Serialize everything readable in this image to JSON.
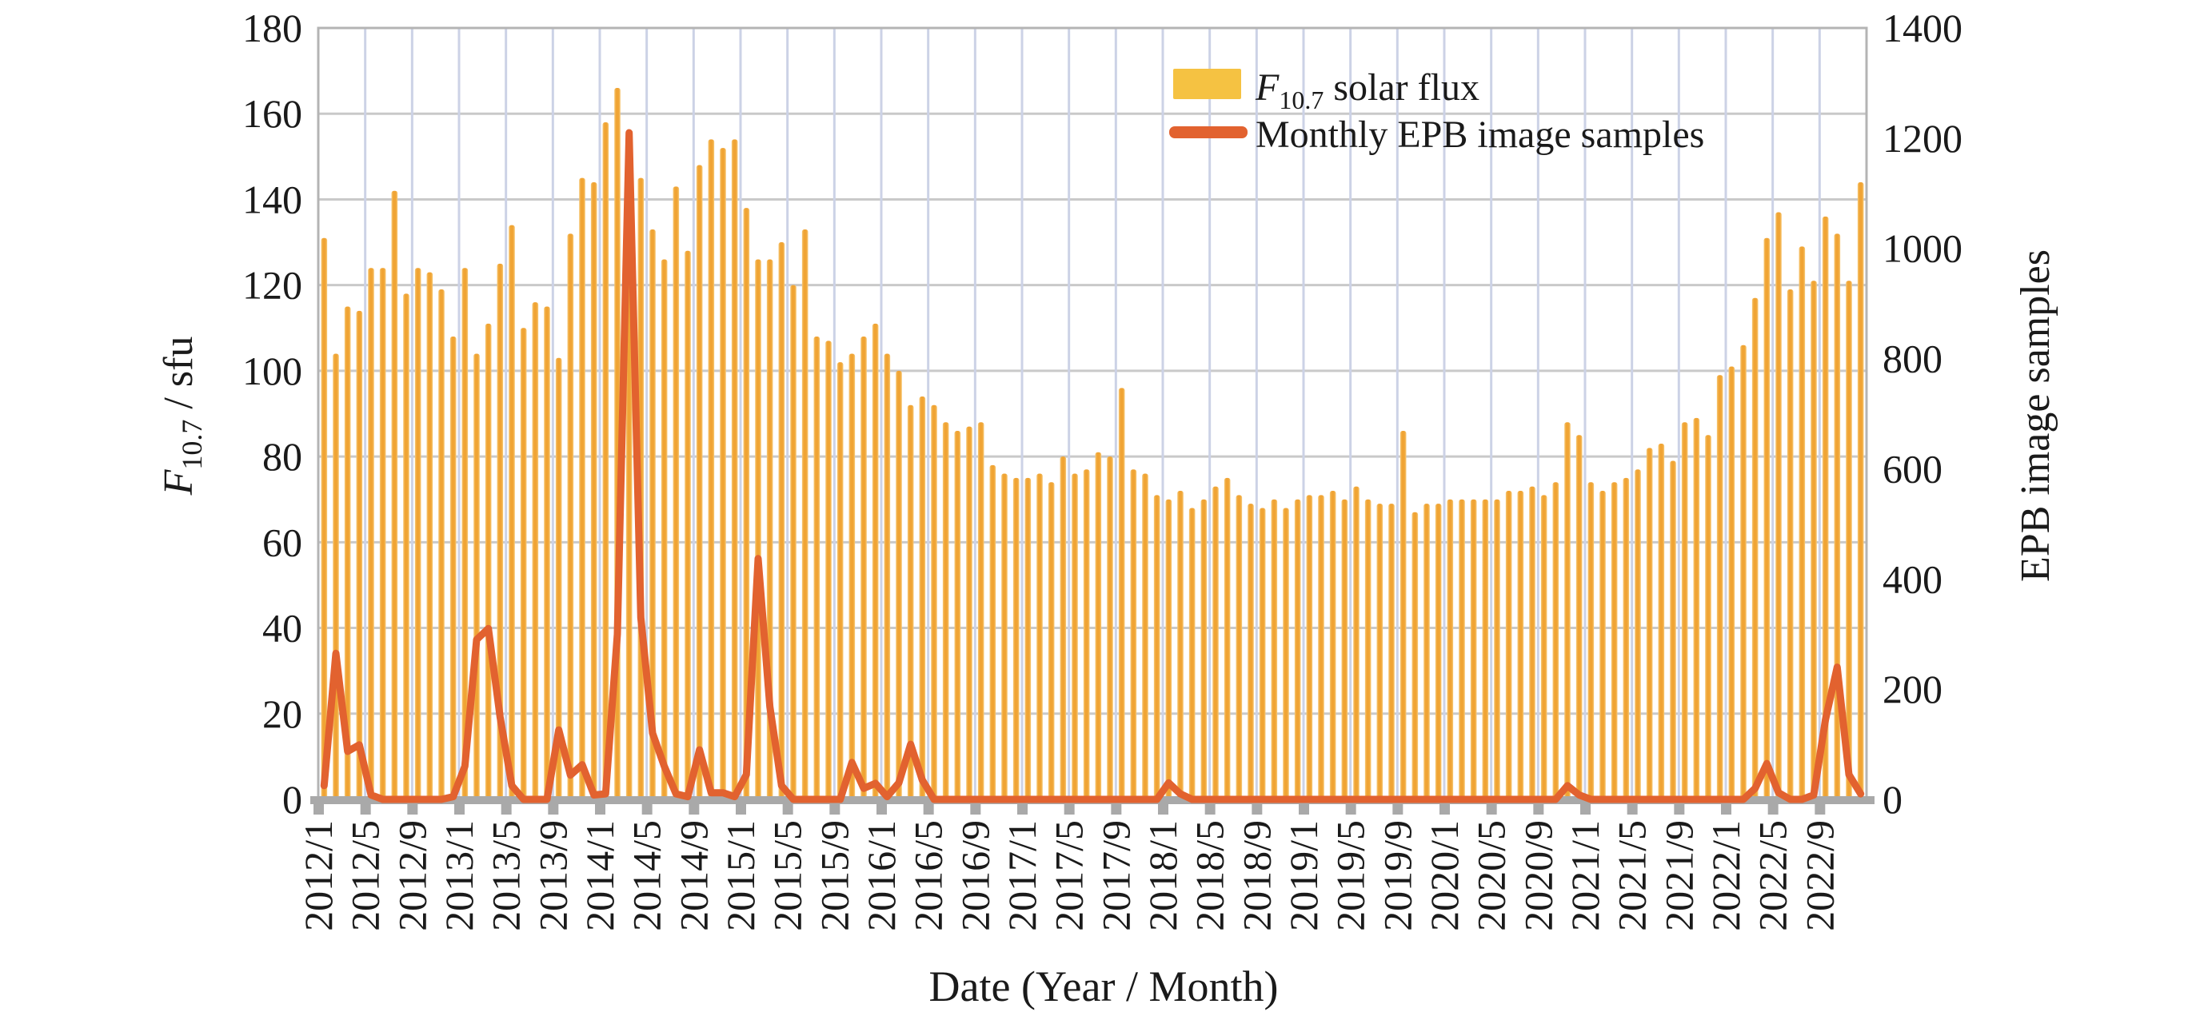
{
  "chart_data": {
    "type": "combo-bar-line",
    "title": "",
    "xlabel": "Date (Year / Month)",
    "x_tick_step": 4,
    "categories": [
      "2012/1",
      "2012/2",
      "2012/3",
      "2012/4",
      "2012/5",
      "2012/6",
      "2012/7",
      "2012/8",
      "2012/9",
      "2012/10",
      "2012/11",
      "2012/12",
      "2013/1",
      "2013/2",
      "2013/3",
      "2013/4",
      "2013/5",
      "2013/6",
      "2013/7",
      "2013/8",
      "2013/9",
      "2013/10",
      "2013/11",
      "2013/12",
      "2014/1",
      "2014/2",
      "2014/3",
      "2014/4",
      "2014/5",
      "2014/6",
      "2014/7",
      "2014/8",
      "2014/9",
      "2014/10",
      "2014/11",
      "2014/12",
      "2015/1",
      "2015/2",
      "2015/3",
      "2015/4",
      "2015/5",
      "2015/6",
      "2015/7",
      "2015/8",
      "2015/9",
      "2015/10",
      "2015/11",
      "2015/12",
      "2016/1",
      "2016/2",
      "2016/3",
      "2016/4",
      "2016/5",
      "2016/6",
      "2016/7",
      "2016/8",
      "2016/9",
      "2016/10",
      "2016/11",
      "2016/12",
      "2017/1",
      "2017/2",
      "2017/3",
      "2017/4",
      "2017/5",
      "2017/6",
      "2017/7",
      "2017/8",
      "2017/9",
      "2017/10",
      "2017/11",
      "2017/12",
      "2018/1",
      "2018/2",
      "2018/3",
      "2018/4",
      "2018/5",
      "2018/6",
      "2018/7",
      "2018/8",
      "2018/9",
      "2018/10",
      "2018/11",
      "2018/12",
      "2019/1",
      "2019/2",
      "2019/3",
      "2019/4",
      "2019/5",
      "2019/6",
      "2019/7",
      "2019/8",
      "2019/9",
      "2019/10",
      "2019/11",
      "2019/12",
      "2020/1",
      "2020/2",
      "2020/3",
      "2020/4",
      "2020/5",
      "2020/6",
      "2020/7",
      "2020/8",
      "2020/9",
      "2020/10",
      "2020/11",
      "2020/12",
      "2021/1",
      "2021/2",
      "2021/3",
      "2021/4",
      "2021/5",
      "2021/6",
      "2021/7",
      "2021/8",
      "2021/9",
      "2021/10",
      "2021/11",
      "2021/12",
      "2022/1",
      "2022/2",
      "2022/3",
      "2022/4",
      "2022/5",
      "2022/6",
      "2022/7",
      "2022/8",
      "2022/9",
      "2022/10",
      "2022/11",
      "2022/12"
    ],
    "left_axis": {
      "label_math": "F",
      "label_sub": "10.7",
      "label_rest": " / sfu",
      "min": 0,
      "max": 180,
      "tick_step": 20,
      "ticks": [
        "0",
        "20",
        "40",
        "60",
        "80",
        "100",
        "120",
        "140",
        "160",
        "180"
      ]
    },
    "right_axis": {
      "label": "EPB image samples",
      "min": 0,
      "max": 1400,
      "tick_step": 200,
      "ticks": [
        "0",
        "200",
        "400",
        "600",
        "800",
        "1000",
        "1200",
        "1400"
      ]
    },
    "series": [
      {
        "id": "f107-solar-flux",
        "type": "bar",
        "axis": "left",
        "legend_math": "F",
        "legend_sub": "10.7",
        "legend_rest": "  solar flux",
        "color": "#f0a434",
        "color_edge": "#f7c977",
        "values": [
          131,
          104,
          115,
          114,
          124,
          124,
          142,
          118,
          124,
          123,
          119,
          108,
          124,
          104,
          111,
          125,
          134,
          110,
          116,
          115,
          103,
          132,
          145,
          144,
          158,
          166,
          150,
          145,
          133,
          126,
          143,
          128,
          148,
          154,
          152,
          154,
          138,
          126,
          126,
          130,
          120,
          133,
          108,
          107,
          102,
          104,
          108,
          111,
          104,
          100,
          92,
          94,
          92,
          88,
          86,
          87,
          88,
          78,
          76,
          75,
          75,
          76,
          74,
          80,
          76,
          77,
          81,
          80,
          96,
          77,
          76,
          71,
          70,
          72,
          68,
          70,
          73,
          75,
          71,
          69,
          68,
          70,
          68,
          70,
          71,
          71,
          72,
          70,
          73,
          70,
          69,
          69,
          86,
          67,
          69,
          69,
          70,
          70,
          70,
          70,
          70,
          72,
          72,
          73,
          71,
          74,
          88,
          85,
          74,
          72,
          74,
          75,
          77,
          82,
          83,
          79,
          88,
          89,
          85,
          99,
          101,
          106,
          117,
          131,
          137,
          119,
          129,
          121,
          136,
          132,
          121,
          144
        ]
      },
      {
        "id": "monthly-epb-image-samples",
        "type": "line",
        "axis": "right",
        "legend": "Monthly EPB image samples",
        "color": "#e2622f",
        "values": [
          25,
          265,
          87,
          99,
          8,
          0,
          0,
          0,
          0,
          0,
          0,
          5,
          60,
          290,
          310,
          150,
          25,
          0,
          0,
          0,
          126,
          44,
          63,
          8,
          10,
          300,
          1210,
          330,
          120,
          60,
          10,
          5,
          90,
          12,
          12,
          5,
          45,
          437,
          168,
          25,
          0,
          0,
          0,
          0,
          0,
          67,
          20,
          29,
          5,
          30,
          100,
          35,
          0,
          0,
          0,
          0,
          0,
          0,
          0,
          0,
          0,
          0,
          0,
          0,
          0,
          0,
          0,
          0,
          0,
          0,
          0,
          0,
          30,
          10,
          0,
          0,
          0,
          0,
          0,
          0,
          0,
          0,
          0,
          0,
          0,
          0,
          0,
          0,
          0,
          0,
          0,
          0,
          0,
          0,
          0,
          0,
          0,
          0,
          0,
          0,
          0,
          0,
          0,
          0,
          0,
          0,
          25,
          8,
          0,
          0,
          0,
          0,
          0,
          0,
          0,
          0,
          0,
          0,
          0,
          0,
          0,
          0,
          20,
          65,
          12,
          0,
          0,
          8,
          145,
          240,
          45,
          10
        ]
      }
    ],
    "legend_position": "top-center-inside",
    "grid": {
      "horizontal_color": "#c9c9c9",
      "vertical_color": "#ccd2e6"
    }
  },
  "colors": {
    "background": "#ffffff",
    "frame": "#b4b4b4",
    "axis_band": "#a9a9a9",
    "tick_square": "#a9a9a9",
    "text": "#1a1a1a",
    "bar": "#f0a434",
    "bar_edge": "#f7c977",
    "line": "#e2622f",
    "legend_swatch": "#f5c242"
  }
}
